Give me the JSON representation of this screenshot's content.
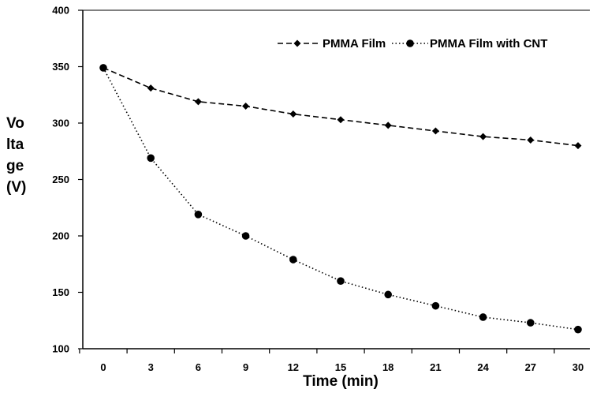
{
  "chart_data": {
    "type": "line",
    "title": "",
    "xlabel": "Time (min)",
    "ylabel_lines": [
      "Vo",
      "lta",
      "ge",
      "(V)"
    ],
    "x": [
      0,
      3,
      6,
      9,
      12,
      15,
      18,
      21,
      24,
      27,
      30
    ],
    "xticks": [
      "0",
      "3",
      "6",
      "9",
      "12",
      "15",
      "18",
      "21",
      "24",
      "27",
      "30"
    ],
    "yticks": [
      "100",
      "150",
      "200",
      "250",
      "300",
      "350",
      "400"
    ],
    "ylim": [
      100,
      400
    ],
    "grid": false,
    "legend_position": "top-right",
    "series": [
      {
        "name": "PMMA Film",
        "marker": "diamond",
        "line_style": "dashed",
        "values": [
          349,
          331,
          319,
          315,
          308,
          303,
          298,
          293,
          288,
          285,
          280
        ]
      },
      {
        "name": "PMMA Film with CNT",
        "marker": "circle",
        "line_style": "dotted",
        "values": [
          349,
          269,
          219,
          200,
          179,
          160,
          148,
          138,
          128,
          123,
          117
        ]
      }
    ]
  }
}
